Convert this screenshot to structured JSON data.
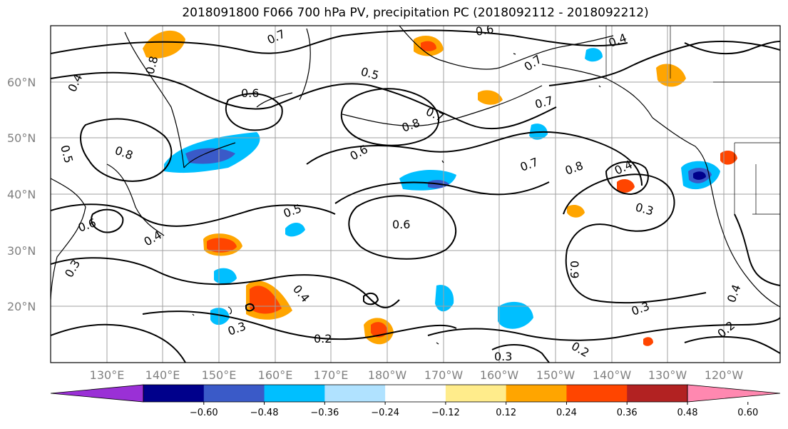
{
  "title": "2018091800 F066 700 hPa PV, precipitation PC (2018092112 - 2018092212)",
  "lat_ticks": [
    "60°N",
    "50°N",
    "40°N",
    "30°N",
    "20°N"
  ],
  "lon_ticks": [
    "130°E",
    "140°E",
    "150°E",
    "160°E",
    "170°E",
    "180°W",
    "170°W",
    "160°W",
    "150°W",
    "140°W",
    "130°W",
    "120°W"
  ],
  "colorbar": {
    "ticks": [
      "−0.60",
      "−0.48",
      "−0.36",
      "−0.24",
      "−0.12",
      "0.12",
      "0.24",
      "0.36",
      "0.48",
      "0.60"
    ],
    "colors": [
      "#9a30d6",
      "#00008b",
      "#3a5ac8",
      "#00bfff",
      "#b0e2ff",
      "#ffffff",
      "#ffec8b",
      "#ffa500",
      "#ff4500",
      "#b22222",
      "#ff88b0"
    ]
  },
  "contour_labels": [
    {
      "text": "0.7"
    },
    {
      "text": "0.6"
    },
    {
      "text": "0.4"
    },
    {
      "text": "0.5"
    },
    {
      "text": "0.7"
    },
    {
      "text": "0.6"
    },
    {
      "text": "0.4"
    },
    {
      "text": "0.8"
    },
    {
      "text": "0.7"
    },
    {
      "text": "0.8"
    },
    {
      "text": "0.6"
    },
    {
      "text": "0.7"
    },
    {
      "text": "0.8"
    },
    {
      "text": "0.4"
    },
    {
      "text": "0.6"
    },
    {
      "text": "0.3"
    },
    {
      "text": "0.5"
    },
    {
      "text": "0.6"
    },
    {
      "text": "0.4"
    },
    {
      "text": "0.3"
    },
    {
      "text": "0.2"
    },
    {
      "text": "0.3"
    },
    {
      "text": "0.3"
    },
    {
      "text": "0.2"
    },
    {
      "text": "0.2"
    },
    {
      "text": "0.4"
    },
    {
      "text": "0.9"
    },
    {
      "text": "0.7"
    },
    {
      "text": "0.5"
    },
    {
      "text": "0.8"
    },
    {
      "text": "0.4"
    },
    {
      "text": "0.3"
    }
  ],
  "colors": {
    "grid": "#a0a0a0",
    "contour": "#000000",
    "coast": "#000000",
    "tick_text": "#808080"
  }
}
